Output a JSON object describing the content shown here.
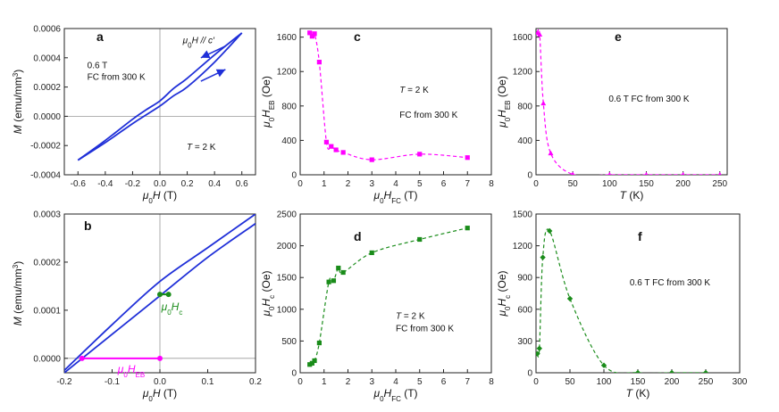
{
  "chart_data": [
    {
      "id": "a",
      "type": "line",
      "panel_label": "a",
      "xlabel": "μ0H (T)",
      "ylabel": "M (emu/mm3)",
      "xlim": [
        -0.7,
        0.7
      ],
      "ylim": [
        -0.0004,
        0.0006
      ],
      "xticks": [
        -0.6,
        -0.4,
        -0.2,
        0.0,
        0.2,
        0.4,
        0.6
      ],
      "xtick_labels": [
        "-0.6",
        "-0.4",
        "-0.2",
        "0.0",
        "0.2",
        "0.4",
        "0.6"
      ],
      "yticks": [
        -0.0004,
        -0.0002,
        0.0,
        0.0002,
        0.0004,
        0.0006
      ],
      "ytick_labels": [
        "-0.0004",
        "-0.0002",
        "0.0000",
        "0.0002",
        "0.0004",
        "0.0006"
      ],
      "zero_lines": {
        "x": true,
        "y": true
      },
      "color": "#1f2fd8",
      "series": [
        {
          "name": "descending branch",
          "x": [
            0.6,
            0.4,
            0.2,
            0.1,
            0.0,
            -0.1,
            -0.2,
            -0.4,
            -0.6
          ],
          "y": [
            0.00057,
            0.00042,
            0.00026,
            0.00019,
            0.000105,
            4.5e-05,
            -2e-05,
            -0.000165,
            -0.0003
          ]
        },
        {
          "name": "ascending branch",
          "x": [
            -0.6,
            -0.4,
            -0.2,
            -0.1,
            0.0,
            0.1,
            0.2,
            0.4,
            0.6
          ],
          "y": [
            -0.0003,
            -0.00018,
            -5e-05,
            1e-05,
            7e-05,
            0.00014,
            0.0002,
            0.00037,
            0.00057
          ]
        }
      ],
      "annotations": [
        "μ0H // c'",
        "0.6 T",
        "FC from 300 K",
        "T = 2 K"
      ]
    },
    {
      "id": "b",
      "type": "line",
      "panel_label": "b",
      "xlabel": "μ0H (T)",
      "ylabel": "M (emu/mm3)",
      "xlim": [
        -0.2,
        0.2
      ],
      "ylim": [
        -3e-05,
        0.0003
      ],
      "xticks": [
        -0.2,
        -0.1,
        0.0,
        0.1,
        0.2
      ],
      "xtick_labels": [
        "-0.2",
        "-0.1",
        "0.0",
        "0.1",
        "0.2"
      ],
      "yticks": [
        0.0,
        0.0001,
        0.0002,
        0.0003
      ],
      "ytick_labels": [
        "0.0000",
        "0.0001",
        "0.0002",
        "0.0003"
      ],
      "zero_lines": {
        "x": true,
        "y": true
      },
      "color": "#1f2fd8",
      "series": [
        {
          "name": "descending branch",
          "x": [
            0.2,
            0.1,
            0.0,
            -0.1,
            -0.2
          ],
          "y": [
            0.0003,
            0.00023,
            0.00016,
            7e-05,
            -2.5e-05
          ]
        },
        {
          "name": "ascending branch",
          "x": [
            -0.2,
            -0.1,
            0.0,
            0.1,
            0.2
          ],
          "y": [
            -3e-05,
            5e-05,
            0.00013,
            0.00021,
            0.00028
          ]
        }
      ],
      "markers": [
        {
          "name": "Hc",
          "color": "#1a8c1a",
          "x": [
            0.0,
            0.018
          ],
          "y": [
            0.000133,
            0.000133
          ],
          "label": "μ0Hc"
        },
        {
          "name": "HEB",
          "color": "#ff00ff",
          "x": [
            -0.163,
            0.0
          ],
          "y": [
            0.0,
            0.0
          ],
          "label": "μ0HEB"
        }
      ]
    },
    {
      "id": "c",
      "type": "line",
      "panel_label": "c",
      "xlabel": "μ0HFC (T)",
      "ylabel": "μ0HEB (Oe)",
      "xlim": [
        0,
        8
      ],
      "ylim": [
        0,
        1700
      ],
      "xticks": [
        0,
        1,
        2,
        3,
        4,
        5,
        6,
        7,
        8
      ],
      "xtick_labels": [
        "0",
        "1",
        "2",
        "3",
        "4",
        "5",
        "6",
        "7",
        "8"
      ],
      "yticks": [
        0,
        400,
        800,
        1200,
        1600
      ],
      "ytick_labels": [
        "0",
        "400",
        "800",
        "1200",
        "1600"
      ],
      "color": "#ff00ff",
      "series": [
        {
          "name": "HEB vs HFC",
          "x": [
            0.4,
            0.5,
            0.6,
            0.8,
            1.1,
            1.3,
            1.5,
            1.8,
            3.0,
            5.0,
            7.0
          ],
          "y": [
            1650,
            1610,
            1640,
            1310,
            380,
            330,
            290,
            260,
            175,
            240,
            200
          ]
        }
      ],
      "annotations": [
        "T = 2 K",
        "FC from 300 K"
      ]
    },
    {
      "id": "d",
      "type": "line",
      "panel_label": "d",
      "xlabel": "μ0HFC (T)",
      "ylabel": "μ0Hc (Oe)",
      "xlim": [
        0,
        8
      ],
      "ylim": [
        0,
        2500
      ],
      "xticks": [
        0,
        1,
        2,
        3,
        4,
        5,
        6,
        7,
        8
      ],
      "xtick_labels": [
        "0",
        "1",
        "2",
        "3",
        "4",
        "5",
        "6",
        "7",
        "8"
      ],
      "yticks": [
        0,
        500,
        1000,
        1500,
        2000,
        2500
      ],
      "ytick_labels": [
        "0",
        "500",
        "1000",
        "1500",
        "2000",
        "2500"
      ],
      "color": "#1a8c1a",
      "series": [
        {
          "name": "Hc vs HFC",
          "x": [
            0.4,
            0.5,
            0.6,
            0.8,
            1.2,
            1.4,
            1.6,
            1.8,
            3.0,
            5.0,
            7.0
          ],
          "y": [
            130,
            150,
            190,
            470,
            1430,
            1450,
            1650,
            1580,
            1890,
            2100,
            2280
          ]
        }
      ],
      "annotations": [
        "T = 2 K",
        "FC from 300 K"
      ]
    },
    {
      "id": "e",
      "type": "line",
      "panel_label": "e",
      "xlabel": "T (K)",
      "ylabel": "μ0HEB (Oe)",
      "xlim": [
        0,
        260
      ],
      "ylim": [
        0,
        1700
      ],
      "xticks": [
        0,
        50,
        100,
        150,
        200,
        250
      ],
      "xtick_labels": [
        "0",
        "50",
        "100",
        "150",
        "200",
        "250"
      ],
      "yticks": [
        0,
        400,
        800,
        1200,
        1600
      ],
      "ytick_labels": [
        "0",
        "400",
        "800",
        "1200",
        "1600"
      ],
      "color": "#ff00ff",
      "series": [
        {
          "name": "HEB vs T",
          "x": [
            2,
            5,
            10,
            20,
            50,
            100,
            150,
            200,
            250
          ],
          "y": [
            1650,
            1630,
            830,
            250,
            5,
            0,
            0,
            0,
            0
          ]
        }
      ],
      "annotations": [
        "0.6 T FC from 300 K"
      ]
    },
    {
      "id": "f",
      "type": "line",
      "panel_label": "f",
      "xlabel": "T (K)",
      "ylabel": "μ0Hc (Oe)",
      "xlim": [
        0,
        300
      ],
      "ylim": [
        0,
        1500
      ],
      "xticks": [
        0,
        50,
        100,
        150,
        200,
        250,
        300
      ],
      "xtick_labels": [
        "0",
        "50",
        "100",
        "150",
        "200",
        "250",
        "300"
      ],
      "yticks": [
        0,
        300,
        600,
        900,
        1200,
        1500
      ],
      "ytick_labels": [
        "0",
        "300",
        "600",
        "900",
        "1200",
        "1500"
      ],
      "color": "#1a8c1a",
      "series": [
        {
          "name": "Hc vs T",
          "x": [
            2,
            5,
            10,
            20,
            50,
            100,
            150,
            200,
            250
          ],
          "y": [
            180,
            230,
            1090,
            1340,
            700,
            70,
            0,
            0,
            0
          ]
        }
      ],
      "annotations": [
        "0.6 T FC from 300 K"
      ]
    }
  ]
}
